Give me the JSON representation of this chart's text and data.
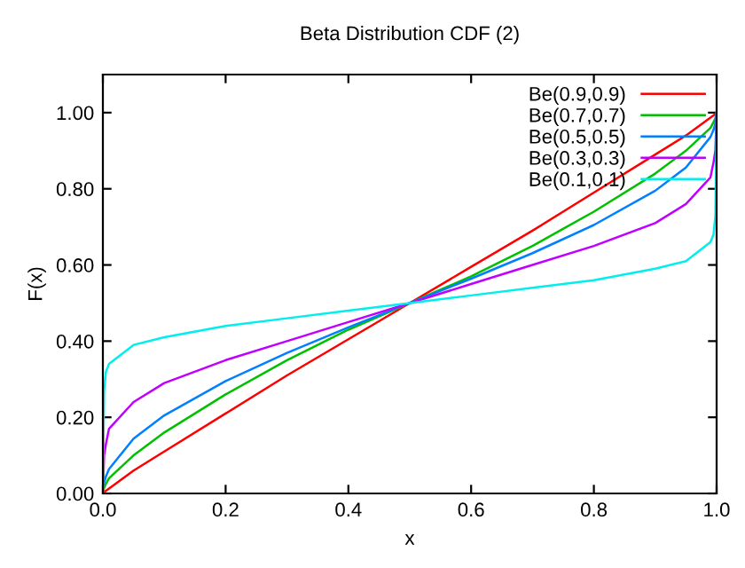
{
  "chart_data": {
    "type": "line",
    "title": "Beta Distribution CDF (2)",
    "xlabel": "x",
    "ylabel": "F(x)",
    "x": [
      0,
      0.002,
      0.005,
      0.01,
      0.05,
      0.1,
      0.2,
      0.3,
      0.4,
      0.5,
      0.6,
      0.7,
      0.8,
      0.9,
      0.95,
      0.99,
      0.995,
      0.998,
      1
    ],
    "series": [
      {
        "name": "Be(0.9,0.9)",
        "color": "#ff0000",
        "values": [
          0,
          0.003,
          0.007,
          0.013,
          0.06,
          0.11,
          0.21,
          0.31,
          0.405,
          0.5,
          0.595,
          0.69,
          0.79,
          0.89,
          0.94,
          0.987,
          0.993,
          0.997,
          1
        ]
      },
      {
        "name": "Be(0.7,0.7)",
        "color": "#00c000",
        "values": [
          0,
          0.015,
          0.025,
          0.04,
          0.1,
          0.16,
          0.26,
          0.35,
          0.43,
          0.5,
          0.57,
          0.65,
          0.74,
          0.84,
          0.9,
          0.96,
          0.975,
          0.985,
          1
        ]
      },
      {
        "name": "Be(0.5,0.5)",
        "color": "#0080ff",
        "values": [
          0,
          0.028,
          0.045,
          0.064,
          0.144,
          0.205,
          0.295,
          0.369,
          0.436,
          0.5,
          0.564,
          0.631,
          0.705,
          0.795,
          0.856,
          0.936,
          0.955,
          0.972,
          1
        ]
      },
      {
        "name": "Be(0.3,0.3)",
        "color": "#c000ff",
        "values": [
          0,
          0.1,
          0.13,
          0.17,
          0.24,
          0.29,
          0.35,
          0.4,
          0.45,
          0.5,
          0.55,
          0.6,
          0.65,
          0.71,
          0.76,
          0.83,
          0.87,
          0.9,
          1
        ]
      },
      {
        "name": "Be(0.1,0.1)",
        "color": "#00eeee",
        "values": [
          0,
          0.27,
          0.32,
          0.34,
          0.39,
          0.41,
          0.44,
          0.46,
          0.48,
          0.5,
          0.52,
          0.54,
          0.56,
          0.59,
          0.61,
          0.66,
          0.68,
          0.73,
          1
        ]
      }
    ],
    "xlim": [
      0,
      1
    ],
    "ylim": [
      0,
      1.1
    ],
    "xticks": [
      {
        "value": 0,
        "label": "0.0"
      },
      {
        "value": 0.2,
        "label": "0.2"
      },
      {
        "value": 0.4,
        "label": "0.4"
      },
      {
        "value": 0.6,
        "label": "0.6"
      },
      {
        "value": 0.8,
        "label": "0.8"
      },
      {
        "value": 1,
        "label": "1.0"
      }
    ],
    "yticks": [
      {
        "value": 0,
        "label": "0.00"
      },
      {
        "value": 0.2,
        "label": "0.20"
      },
      {
        "value": 0.4,
        "label": "0.40"
      },
      {
        "value": 0.6,
        "label": "0.60"
      },
      {
        "value": 0.8,
        "label": "0.80"
      },
      {
        "value": 1,
        "label": "1.00"
      }
    ],
    "grid": false,
    "legend": "top right",
    "marker": "none",
    "line_style": "solid"
  }
}
